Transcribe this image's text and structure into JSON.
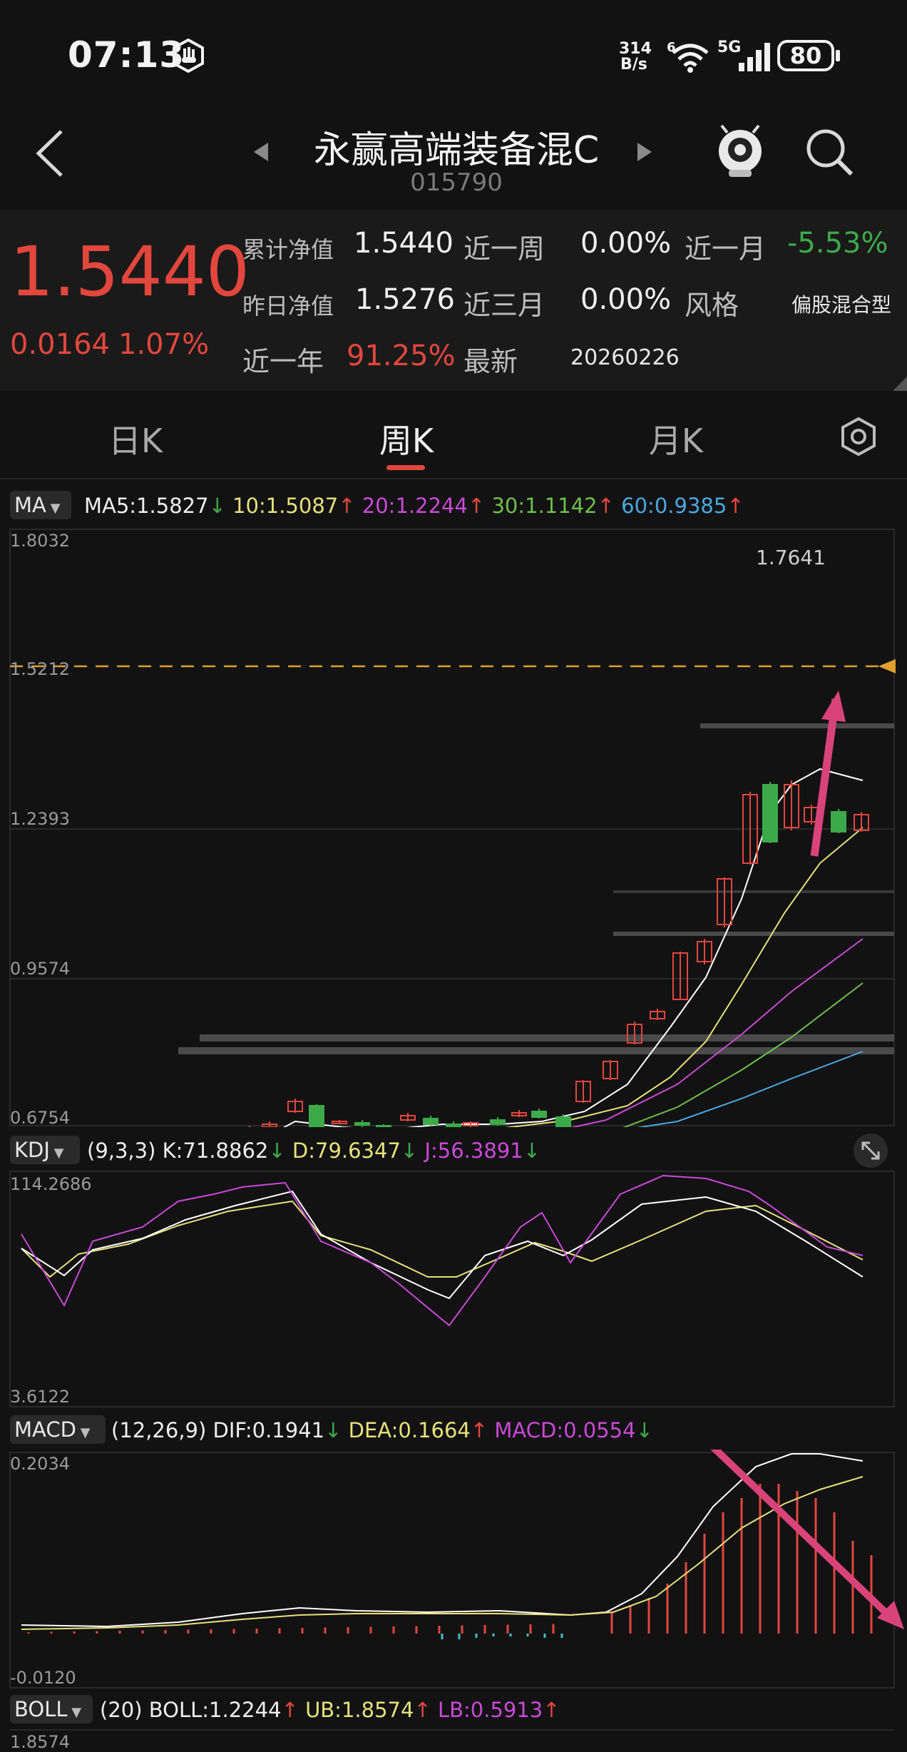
{
  "status": {
    "time": "07:13",
    "net_speed": "314",
    "net_unit": "B/s",
    "wifi_label": "6",
    "cell_label": "5G",
    "battery": "80"
  },
  "header": {
    "title": "永赢高端装备混C",
    "code": "015790"
  },
  "nav": {
    "back_icon": "chevron-left-icon",
    "prev_icon": "triangle-left-icon",
    "next_icon": "triangle-right-icon",
    "assistant_icon": "robot-avatar-icon",
    "search_icon": "search-icon"
  },
  "info": {
    "price": "1.5440",
    "change": "0.0164",
    "change_pct": "1.07%",
    "acc_nav_label": "累计净值",
    "acc_nav": "1.5440",
    "week_label": "近一周",
    "week": "0.00%",
    "month_label": "近一月",
    "month": "-5.53%",
    "prev_nav_label": "昨日净值",
    "prev_nav": "1.5276",
    "quarter_label": "近三月",
    "quarter": "0.00%",
    "style_label": "风格",
    "style": "偏股混合型",
    "year_label": "近一年",
    "year": "91.25%",
    "latest_label": "最新",
    "latest": "20260226"
  },
  "tabs": [
    {
      "label": "日K"
    },
    {
      "label": "周K"
    },
    {
      "label": "月K"
    }
  ],
  "ma": {
    "selector": "MA",
    "ma5": "MA5:1.5827",
    "ma10": "10:1.5087",
    "ma20": "20:1.2244",
    "ma30": "30:1.1142",
    "ma60": "60:0.9385",
    "colors": {
      "ma5": "#ffffff",
      "ma10": "#e8e07a",
      "ma20": "#c84ad6",
      "ma30": "#6fbf4a",
      "ma60": "#4aa8e0"
    },
    "y_ticks": [
      "1.8032",
      "1.5212",
      "1.2393",
      "0.9574",
      "0.6754"
    ],
    "high_label": "1.7641"
  },
  "kdj": {
    "selector": "KDJ",
    "params": "(9,3,3)",
    "k": "K:71.8862",
    "d": "D:79.6347",
    "j": "J:56.3891",
    "y_ticks": [
      "114.2686",
      "3.6122"
    ]
  },
  "macd": {
    "selector": "MACD",
    "params": "(12,26,9)",
    "dif": "DIF:0.1941",
    "dea": "DEA:0.1664",
    "macd": "MACD:0.0554",
    "y_ticks": [
      "0.2034",
      "-0.0120"
    ]
  },
  "boll": {
    "selector": "BOLL",
    "params": "(20)",
    "boll": "BOLL:1.2244",
    "ub": "UB:1.8574",
    "lb": "LB:0.5913",
    "y_tick": "1.8574"
  },
  "colors": {
    "up": "#e2473e",
    "down": "#3daa4a",
    "accent": "#e2473e",
    "arrow": "#d8447a",
    "dashed": "#e0a030"
  }
}
